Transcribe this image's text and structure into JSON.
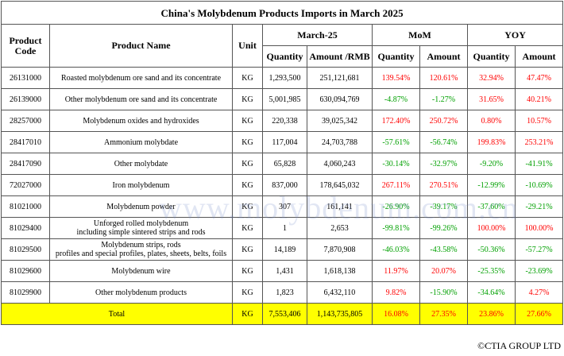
{
  "header": {
    "title": "China's Molybdenum Products Imports in March 2025"
  },
  "table": {
    "columns_top": [
      "Product Code",
      "Product Name",
      "Unit",
      "March-25",
      "MoM",
      "YOY"
    ],
    "columns_sub": [
      "Quantity",
      "Amount /RMB",
      "Quantity",
      "Amount",
      "Quantity",
      "Amount"
    ],
    "rows": [
      [
        "26131000",
        "Roasted molybdenum ore sand and its concentrate",
        "KG",
        "1,293,500",
        "251,121,681",
        "139.54%",
        "120.61%",
        "32.94%",
        "47.47%"
      ],
      [
        "26139000",
        "Other molybdenum ore sand and its concentrate",
        "KG",
        "5,001,985",
        "630,094,769",
        "-4.87%",
        "-1.27%",
        "31.65%",
        "40.21%"
      ],
      [
        "28257000",
        "Molybdenum oxides and hydroxides",
        "KG",
        "220,338",
        "39,025,342",
        "172.40%",
        "250.72%",
        "0.80%",
        "10.57%"
      ],
      [
        "28417010",
        "Ammonium molybdate",
        "KG",
        "117,004",
        "24,703,788",
        "-57.61%",
        "-56.74%",
        "199.83%",
        "253.21%"
      ],
      [
        "28417090",
        "Other molybdate",
        "KG",
        "65,828",
        "4,060,243",
        "-30.14%",
        "-32.97%",
        "-9.20%",
        "-41.91%"
      ],
      [
        "72027000",
        "Iron molybdenum",
        "KG",
        "837,000",
        "178,645,032",
        "267.11%",
        "270.51%",
        "-12.99%",
        "-10.69%"
      ],
      [
        "81021000",
        "Molybdenum powder",
        "KG",
        "307",
        "161,141",
        "-26.90%",
        "-39.17%",
        "-37.60%",
        "-29.21%"
      ],
      [
        "81029400",
        "Unforged rolled molybdenum\nincluding simple sintered strips and rods",
        "KG",
        "1",
        "2,653",
        "-99.81%",
        "-99.26%",
        "100.00%",
        "100.00%"
      ],
      [
        "81029500",
        "Molybdenum strips, rods\nprofiles and special profiles, plates, sheets, belts, foils",
        "KG",
        "14,189",
        "7,870,908",
        "-46.03%",
        "-43.58%",
        "-50.36%",
        "-57.27%"
      ],
      [
        "81029600",
        "Molybdenum wire",
        "KG",
        "1,431",
        "1,618,138",
        "11.97%",
        "20.07%",
        "-25.35%",
        "-23.69%"
      ],
      [
        "81029900",
        "Other molybdenum products",
        "KG",
        "1,823",
        "6,432,110",
        "9.82%",
        "-15.90%",
        "-34.64%",
        "4.27%"
      ]
    ],
    "total": [
      "Total",
      "KG",
      "7,553,406",
      "1,143,735,805",
      "16.08%",
      "27.35%",
      "23.86%",
      "27.66%"
    ]
  },
  "watermark": "www.molybdenum.com.cn",
  "footer": "©CTIA GROUP LTD"
}
